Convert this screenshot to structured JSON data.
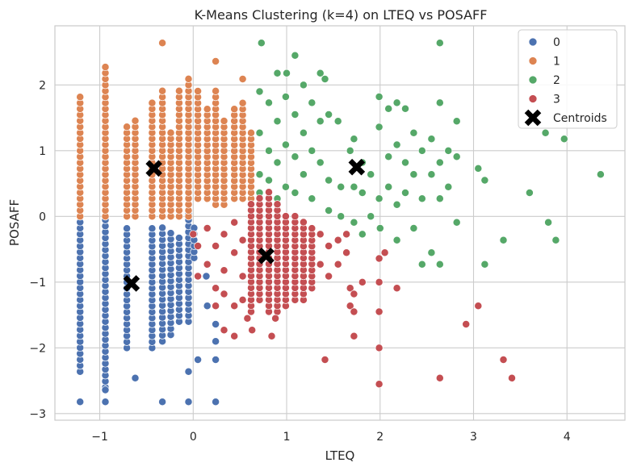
{
  "chart_data": {
    "type": "scatter",
    "title": "K-Means Clustering (k=4) on LTEQ vs POSAFF",
    "xlabel": "LTEQ",
    "ylabel": "POSAFF",
    "xlim": [
      -1.48,
      4.62
    ],
    "ylim": [
      -3.1,
      2.9
    ],
    "xticks": [
      -1,
      0,
      1,
      2,
      3,
      4
    ],
    "yticks": [
      -3,
      -2,
      -1,
      0,
      1,
      2
    ],
    "xtick_labels": [
      "−1",
      "0",
      "1",
      "2",
      "3",
      "4"
    ],
    "ytick_labels": [
      "−3",
      "−2",
      "−1",
      "0",
      "1",
      "2"
    ],
    "grid": true,
    "legend_position": "top-right",
    "series": [
      {
        "name": "0",
        "color": "#4c72b0",
        "columns": [
          {
            "x": -1.21,
            "y_min": -2.36,
            "y_max": -0.09
          },
          {
            "x": -0.94,
            "y_min": -2.6,
            "y_max": -0.09
          },
          {
            "x": -0.71,
            "y_min": -2.0,
            "y_max": -0.18
          },
          {
            "x": -0.44,
            "y_min": -2.0,
            "y_max": -0.18
          },
          {
            "x": -0.33,
            "y_min": -1.9,
            "y_max": -0.18
          },
          {
            "x": -0.24,
            "y_min": -1.8,
            "y_max": -0.27
          },
          {
            "x": -0.15,
            "y_min": -1.6,
            "y_max": -0.36
          },
          {
            "x": -0.05,
            "y_min": -1.6,
            "y_max": 0.0
          },
          {
            "x": 0.01,
            "y_min": -0.63,
            "y_max": -0.18
          }
        ],
        "points": [
          {
            "x": -1.21,
            "y": -2.82
          },
          {
            "x": -0.94,
            "y": -2.82
          },
          {
            "x": -0.94,
            "y": -2.64
          },
          {
            "x": -0.62,
            "y": -2.46
          },
          {
            "x": -0.33,
            "y": -2.82
          },
          {
            "x": -0.05,
            "y": -2.82
          },
          {
            "x": 0.24,
            "y": -2.82
          },
          {
            "x": -0.05,
            "y": -2.36
          },
          {
            "x": 0.05,
            "y": -2.18
          },
          {
            "x": 0.24,
            "y": -2.18
          },
          {
            "x": 0.24,
            "y": -1.9
          },
          {
            "x": 0.24,
            "y": -1.64
          },
          {
            "x": 0.15,
            "y": -1.36
          },
          {
            "x": 0.14,
            "y": -0.91
          }
        ]
      },
      {
        "name": "1",
        "color": "#dd8452",
        "columns": [
          {
            "x": -1.21,
            "y_min": 0.0,
            "y_max": 1.82
          },
          {
            "x": -0.94,
            "y_min": 0.0,
            "y_max": 2.27
          },
          {
            "x": -0.71,
            "y_min": 0.0,
            "y_max": 1.36
          },
          {
            "x": -0.62,
            "y_min": 0.0,
            "y_max": 1.45
          },
          {
            "x": -0.44,
            "y_min": 0.0,
            "y_max": 1.73
          },
          {
            "x": -0.33,
            "y_min": 0.0,
            "y_max": 1.9
          },
          {
            "x": -0.24,
            "y_min": 0.0,
            "y_max": 1.27
          },
          {
            "x": -0.15,
            "y_min": 0.0,
            "y_max": 1.9
          },
          {
            "x": -0.05,
            "y_min": 0.0,
            "y_max": 2.09
          },
          {
            "x": 0.05,
            "y_min": 0.27,
            "y_max": 1.9
          },
          {
            "x": 0.15,
            "y_min": 0.27,
            "y_max": 1.63
          },
          {
            "x": 0.24,
            "y_min": 0.18,
            "y_max": 1.9
          },
          {
            "x": 0.33,
            "y_min": 0.18,
            "y_max": 1.45
          },
          {
            "x": 0.44,
            "y_min": 0.27,
            "y_max": 1.63
          },
          {
            "x": 0.53,
            "y_min": 0.27,
            "y_max": 1.73
          },
          {
            "x": 0.62,
            "y_min": 0.27,
            "y_max": 1.27
          }
        ],
        "points": [
          {
            "x": -0.33,
            "y": 2.64
          },
          {
            "x": 0.24,
            "y": 2.36
          },
          {
            "x": 0.53,
            "y": 2.09
          }
        ]
      },
      {
        "name": "2",
        "color": "#55a868",
        "points": [
          {
            "x": 0.71,
            "y": 1.9
          },
          {
            "x": 0.71,
            "y": 1.27
          },
          {
            "x": 0.71,
            "y": 0.64
          },
          {
            "x": 0.71,
            "y": 0.36
          },
          {
            "x": 0.73,
            "y": 2.64
          },
          {
            "x": 0.81,
            "y": 1.73
          },
          {
            "x": 0.81,
            "y": 1.0
          },
          {
            "x": 0.81,
            "y": 0.55
          },
          {
            "x": 0.9,
            "y": 2.18
          },
          {
            "x": 0.9,
            "y": 1.45
          },
          {
            "x": 0.9,
            "y": 0.82
          },
          {
            "x": 0.9,
            "y": 0.27
          },
          {
            "x": 0.99,
            "y": 1.82
          },
          {
            "x": 0.99,
            "y": 1.09
          },
          {
            "x": 0.99,
            "y": 0.45
          },
          {
            "x": 1.0,
            "y": 2.18
          },
          {
            "x": 1.09,
            "y": 2.45
          },
          {
            "x": 1.09,
            "y": 1.55
          },
          {
            "x": 1.09,
            "y": 0.91
          },
          {
            "x": 1.09,
            "y": 0.36
          },
          {
            "x": 1.18,
            "y": 2.0
          },
          {
            "x": 1.18,
            "y": 1.27
          },
          {
            "x": 1.18,
            "y": 0.64
          },
          {
            "x": 1.27,
            "y": 1.73
          },
          {
            "x": 1.27,
            "y": 1.0
          },
          {
            "x": 1.27,
            "y": 0.27
          },
          {
            "x": 1.36,
            "y": 2.18
          },
          {
            "x": 1.36,
            "y": 1.45
          },
          {
            "x": 1.36,
            "y": 0.82
          },
          {
            "x": 1.41,
            "y": 2.09
          },
          {
            "x": 1.45,
            "y": 1.55
          },
          {
            "x": 1.45,
            "y": 0.55
          },
          {
            "x": 1.45,
            "y": 0.09
          },
          {
            "x": 1.55,
            "y": 1.45
          },
          {
            "x": 1.58,
            "y": 0.45
          },
          {
            "x": 1.58,
            "y": 0.0
          },
          {
            "x": 1.68,
            "y": 1.0
          },
          {
            "x": 1.72,
            "y": 1.18
          },
          {
            "x": 1.72,
            "y": 0.45
          },
          {
            "x": 1.72,
            "y": -0.09
          },
          {
            "x": 1.81,
            "y": 0.82
          },
          {
            "x": 1.81,
            "y": 0.36
          },
          {
            "x": 1.81,
            "y": -0.27
          },
          {
            "x": 1.9,
            "y": 0.64
          },
          {
            "x": 1.9,
            "y": 0.0
          },
          {
            "x": 1.99,
            "y": 1.82
          },
          {
            "x": 1.99,
            "y": 1.36
          },
          {
            "x": 1.99,
            "y": 0.27
          },
          {
            "x": 2.0,
            "y": -0.18
          },
          {
            "x": 2.09,
            "y": 1.64
          },
          {
            "x": 2.09,
            "y": 0.91
          },
          {
            "x": 2.09,
            "y": 0.45
          },
          {
            "x": 2.18,
            "y": 1.73
          },
          {
            "x": 2.18,
            "y": 1.09
          },
          {
            "x": 2.18,
            "y": 0.18
          },
          {
            "x": 2.18,
            "y": -0.36
          },
          {
            "x": 2.27,
            "y": 1.64
          },
          {
            "x": 2.27,
            "y": 0.82
          },
          {
            "x": 2.27,
            "y": 0.36
          },
          {
            "x": 2.36,
            "y": 1.27
          },
          {
            "x": 2.36,
            "y": 0.64
          },
          {
            "x": 2.36,
            "y": -0.18
          },
          {
            "x": 2.45,
            "y": 1.0
          },
          {
            "x": 2.45,
            "y": 0.27
          },
          {
            "x": 2.45,
            "y": -0.73
          },
          {
            "x": 2.55,
            "y": 1.18
          },
          {
            "x": 2.55,
            "y": 0.64
          },
          {
            "x": 2.55,
            "y": -0.55
          },
          {
            "x": 2.64,
            "y": 2.64
          },
          {
            "x": 2.64,
            "y": 1.73
          },
          {
            "x": 2.64,
            "y": 0.82
          },
          {
            "x": 2.64,
            "y": 0.27
          },
          {
            "x": 2.64,
            "y": -0.73
          },
          {
            "x": 2.73,
            "y": 1.0
          },
          {
            "x": 2.73,
            "y": 0.45
          },
          {
            "x": 2.82,
            "y": 1.45
          },
          {
            "x": 2.82,
            "y": 0.91
          },
          {
            "x": 2.82,
            "y": -0.09
          },
          {
            "x": 3.05,
            "y": 0.73
          },
          {
            "x": 3.12,
            "y": 0.55
          },
          {
            "x": 3.12,
            "y": -0.73
          },
          {
            "x": 3.32,
            "y": -0.36
          },
          {
            "x": 3.6,
            "y": 0.36
          },
          {
            "x": 3.77,
            "y": 1.27
          },
          {
            "x": 3.8,
            "y": -0.09
          },
          {
            "x": 3.88,
            "y": -0.36
          },
          {
            "x": 3.97,
            "y": 1.18
          },
          {
            "x": 4.36,
            "y": 0.64
          }
        ]
      },
      {
        "name": "3",
        "color": "#c44e52",
        "columns": [
          {
            "x": 0.62,
            "y_min": -1.45,
            "y_max": 0.18
          },
          {
            "x": 0.71,
            "y_min": -1.27,
            "y_max": 0.27
          },
          {
            "x": 0.81,
            "y_min": -1.45,
            "y_max": 0.36
          },
          {
            "x": 0.9,
            "y_min": -1.45,
            "y_max": 0.18
          },
          {
            "x": 0.99,
            "y_min": -1.36,
            "y_max": 0.0
          },
          {
            "x": 1.09,
            "y_min": -1.27,
            "y_max": 0.0
          },
          {
            "x": 1.18,
            "y_min": -1.27,
            "y_max": -0.09
          },
          {
            "x": 1.27,
            "y_min": -1.09,
            "y_max": -0.18
          }
        ],
        "points": [
          {
            "x": 0.0,
            "y": -0.27
          },
          {
            "x": 0.05,
            "y": -0.45
          },
          {
            "x": 0.05,
            "y": -0.91
          },
          {
            "x": 0.15,
            "y": -0.73
          },
          {
            "x": 0.15,
            "y": -0.18
          },
          {
            "x": 0.24,
            "y": -0.45
          },
          {
            "x": 0.24,
            "y": -1.09
          },
          {
            "x": 0.24,
            "y": -1.36
          },
          {
            "x": 0.33,
            "y": -0.27
          },
          {
            "x": 0.33,
            "y": -0.82
          },
          {
            "x": 0.33,
            "y": -1.18
          },
          {
            "x": 0.33,
            "y": -1.73
          },
          {
            "x": 0.44,
            "y": -0.09
          },
          {
            "x": 0.44,
            "y": -0.55
          },
          {
            "x": 0.44,
            "y": -1.36
          },
          {
            "x": 0.44,
            "y": -1.82
          },
          {
            "x": 0.53,
            "y": -0.36
          },
          {
            "x": 0.53,
            "y": -0.91
          },
          {
            "x": 0.53,
            "y": -1.27
          },
          {
            "x": 0.58,
            "y": -1.55
          },
          {
            "x": 0.63,
            "y": -1.73
          },
          {
            "x": 0.84,
            "y": -1.82
          },
          {
            "x": 0.88,
            "y": -1.55
          },
          {
            "x": 1.36,
            "y": -0.27
          },
          {
            "x": 1.36,
            "y": -0.73
          },
          {
            "x": 1.41,
            "y": -2.18
          },
          {
            "x": 1.45,
            "y": -0.45
          },
          {
            "x": 1.45,
            "y": -0.91
          },
          {
            "x": 1.55,
            "y": -0.36
          },
          {
            "x": 1.55,
            "y": -0.73
          },
          {
            "x": 1.64,
            "y": -0.55
          },
          {
            "x": 1.64,
            "y": -0.27
          },
          {
            "x": 1.68,
            "y": -1.09
          },
          {
            "x": 1.68,
            "y": -1.36
          },
          {
            "x": 1.72,
            "y": -1.18
          },
          {
            "x": 1.72,
            "y": -1.45
          },
          {
            "x": 1.72,
            "y": -1.82
          },
          {
            "x": 1.81,
            "y": -1.0
          },
          {
            "x": 1.99,
            "y": -0.64
          },
          {
            "x": 1.99,
            "y": -1.0
          },
          {
            "x": 1.99,
            "y": -1.45
          },
          {
            "x": 1.99,
            "y": -2.0
          },
          {
            "x": 1.99,
            "y": -2.55
          },
          {
            "x": 2.05,
            "y": -0.55
          },
          {
            "x": 2.18,
            "y": -1.09
          },
          {
            "x": 2.64,
            "y": -2.46
          },
          {
            "x": 2.92,
            "y": -1.64
          },
          {
            "x": 3.05,
            "y": -1.36
          },
          {
            "x": 3.32,
            "y": -2.18
          },
          {
            "x": 3.41,
            "y": -2.46
          }
        ]
      }
    ],
    "centroids": {
      "name": "Centroids",
      "color": "#000000",
      "points": [
        {
          "x": -0.42,
          "y": 0.73
        },
        {
          "x": -0.66,
          "y": -1.02
        },
        {
          "x": 1.75,
          "y": 0.75
        },
        {
          "x": 0.78,
          "y": -0.6
        }
      ]
    }
  }
}
